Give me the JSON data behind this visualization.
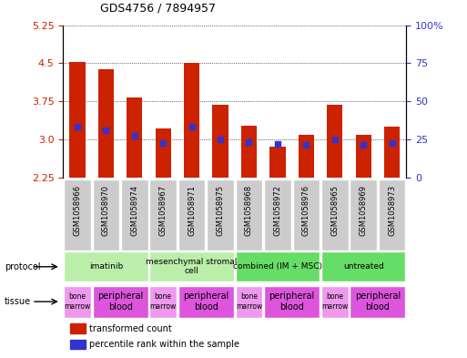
{
  "title": "GDS4756 / 7894957",
  "samples": [
    "GSM1058966",
    "GSM1058970",
    "GSM1058974",
    "GSM1058967",
    "GSM1058971",
    "GSM1058975",
    "GSM1058968",
    "GSM1058972",
    "GSM1058976",
    "GSM1058965",
    "GSM1058969",
    "GSM1058973"
  ],
  "bar_heights": [
    4.52,
    4.38,
    3.82,
    3.22,
    4.5,
    3.68,
    3.27,
    2.85,
    3.08,
    3.68,
    3.08,
    3.25
  ],
  "blue_markers": [
    3.25,
    3.18,
    3.07,
    2.93,
    3.25,
    3.0,
    2.95,
    2.91,
    2.89,
    3.0,
    2.89,
    2.92
  ],
  "bar_bottom": 2.25,
  "ylim": [
    2.25,
    5.25
  ],
  "yticks_left": [
    2.25,
    3.0,
    3.75,
    4.5,
    5.25
  ],
  "yticks_right_labels": [
    "0",
    "25",
    "50",
    "75",
    "100%"
  ],
  "yticks_right_pct": [
    0,
    25,
    50,
    75,
    100
  ],
  "bar_color": "#cc2200",
  "blue_color": "#3333cc",
  "bg_color": "#ffffff",
  "plot_area_color": "#ffffff",
  "sample_box_color": "#cccccc",
  "protocols": [
    {
      "label": "imatinib",
      "start": 0,
      "end": 3,
      "color": "#bbeeaa"
    },
    {
      "label": "mesenchymal stromal\ncell",
      "start": 3,
      "end": 6,
      "color": "#bbeeaa"
    },
    {
      "label": "combined (IM + MSC)",
      "start": 6,
      "end": 9,
      "color": "#66dd66"
    },
    {
      "label": "untreated",
      "start": 9,
      "end": 12,
      "color": "#66dd66"
    }
  ],
  "tissues": [
    {
      "label": "bone\nmarrow",
      "start": 0,
      "end": 1,
      "color": "#ee99ee"
    },
    {
      "label": "peripheral\nblood",
      "start": 1,
      "end": 3,
      "color": "#dd55dd"
    },
    {
      "label": "bone\nmarrow",
      "start": 3,
      "end": 4,
      "color": "#ee99ee"
    },
    {
      "label": "peripheral\nblood",
      "start": 4,
      "end": 6,
      "color": "#dd55dd"
    },
    {
      "label": "bone\nmarrow",
      "start": 6,
      "end": 7,
      "color": "#ee99ee"
    },
    {
      "label": "peripheral\nblood",
      "start": 7,
      "end": 9,
      "color": "#dd55dd"
    },
    {
      "label": "bone\nmarrow",
      "start": 9,
      "end": 10,
      "color": "#ee99ee"
    },
    {
      "label": "peripheral\nblood",
      "start": 10,
      "end": 12,
      "color": "#dd55dd"
    }
  ],
  "legend_red_label": "transformed count",
  "legend_blue_label": "percentile rank within the sample",
  "bar_width": 0.55,
  "marker_size": 4
}
